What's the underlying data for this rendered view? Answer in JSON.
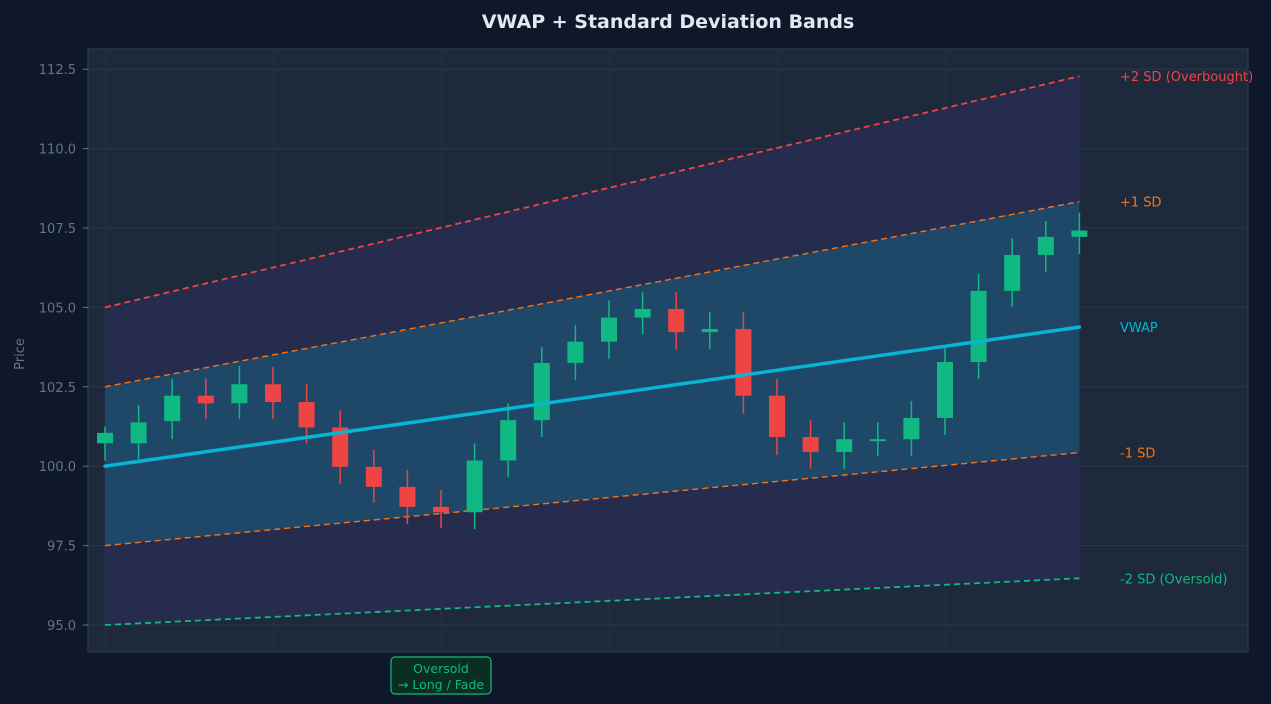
{
  "chart_data": {
    "type": "candlestick",
    "title": "VWAP + Standard Deviation Bands",
    "xlabel": "",
    "ylabel": "Price",
    "ylim": [
      94.2,
      113.1
    ],
    "yticks": [
      95.0,
      97.5,
      100.0,
      102.5,
      105.0,
      107.5,
      110.0,
      112.5
    ],
    "ytick_labels": [
      "95.0",
      "97.5",
      "100.0",
      "102.5",
      "105.0",
      "107.5",
      "110.0",
      "112.5"
    ],
    "grid": true,
    "colors": {
      "up": "#10b981",
      "down": "#ef4444",
      "vwap": "#06b6d4",
      "sd1": "#f97316",
      "sd2_upper": "#ef4444",
      "sd2_lower": "#10b981",
      "inner_band_fill": "#1e4a6b",
      "outer_band_fill": "#2a2d55",
      "background": "#0f172a",
      "plot_background": "#1e293b",
      "text": "#e2e8f0",
      "axis_text": "#64748b"
    },
    "candles": [
      {
        "o": 100.72,
        "h": 101.25,
        "l": 100.18,
        "c": 101.05
      },
      {
        "o": 100.72,
        "h": 101.92,
        "l": 100.22,
        "c": 101.38
      },
      {
        "o": 101.42,
        "h": 102.75,
        "l": 100.85,
        "c": 102.22
      },
      {
        "o": 102.22,
        "h": 102.75,
        "l": 101.48,
        "c": 101.98
      },
      {
        "o": 101.98,
        "h": 103.15,
        "l": 101.48,
        "c": 102.58
      },
      {
        "o": 102.58,
        "h": 103.12,
        "l": 101.48,
        "c": 102.02
      },
      {
        "o": 102.02,
        "h": 102.58,
        "l": 100.72,
        "c": 101.22
      },
      {
        "o": 101.22,
        "h": 101.75,
        "l": 99.45,
        "c": 99.98
      },
      {
        "o": 99.98,
        "h": 100.52,
        "l": 98.85,
        "c": 99.35
      },
      {
        "o": 99.35,
        "h": 99.88,
        "l": 98.18,
        "c": 98.72
      },
      {
        "o": 98.72,
        "h": 99.25,
        "l": 98.05,
        "c": 98.55
      },
      {
        "o": 98.55,
        "h": 100.72,
        "l": 98.02,
        "c": 100.18
      },
      {
        "o": 100.18,
        "h": 101.98,
        "l": 99.65,
        "c": 101.45
      },
      {
        "o": 101.45,
        "h": 103.75,
        "l": 100.92,
        "c": 103.25
      },
      {
        "o": 103.25,
        "h": 104.45,
        "l": 102.72,
        "c": 103.92
      },
      {
        "o": 103.92,
        "h": 105.22,
        "l": 103.38,
        "c": 104.68
      },
      {
        "o": 104.68,
        "h": 105.48,
        "l": 104.15,
        "c": 104.95
      },
      {
        "o": 104.95,
        "h": 105.48,
        "l": 103.68,
        "c": 104.22
      },
      {
        "o": 104.22,
        "h": 104.85,
        "l": 103.68,
        "c": 104.32
      },
      {
        "o": 104.32,
        "h": 104.85,
        "l": 101.65,
        "c": 102.22
      },
      {
        "o": 102.22,
        "h": 102.75,
        "l": 100.35,
        "c": 100.92
      },
      {
        "o": 100.92,
        "h": 101.45,
        "l": 99.92,
        "c": 100.45
      },
      {
        "o": 100.45,
        "h": 101.38,
        "l": 99.92,
        "c": 100.85
      },
      {
        "o": 100.85,
        "h": 101.38,
        "l": 100.32,
        "c": 100.85
      },
      {
        "o": 100.85,
        "h": 102.05,
        "l": 100.32,
        "c": 101.52
      },
      {
        "o": 101.52,
        "h": 103.78,
        "l": 100.98,
        "c": 103.28
      },
      {
        "o": 103.28,
        "h": 106.05,
        "l": 102.75,
        "c": 105.52
      },
      {
        "o": 105.52,
        "h": 107.18,
        "l": 105.02,
        "c": 106.65
      },
      {
        "o": 106.65,
        "h": 107.72,
        "l": 106.12,
        "c": 107.22
      },
      {
        "o": 107.22,
        "h": 107.98,
        "l": 106.68,
        "c": 107.42
      }
    ],
    "lines": {
      "vwap": {
        "label": "VWAP",
        "start": 100.0,
        "end": 104.38
      },
      "plus1": {
        "label": "+1 SD",
        "start": 102.5,
        "end": 108.33
      },
      "minus1": {
        "label": "-1 SD",
        "start": 97.5,
        "end": 100.43
      },
      "plus2": {
        "label": "+2 SD (Overbought)",
        "start": 105.0,
        "end": 112.28
      },
      "minus2": {
        "label": "-2 SD (Oversold)",
        "start": 95.0,
        "end": 96.47
      }
    },
    "annotation": {
      "line1": "Oversold",
      "line2": "→ Long / Fade",
      "candle_index": 10
    }
  }
}
